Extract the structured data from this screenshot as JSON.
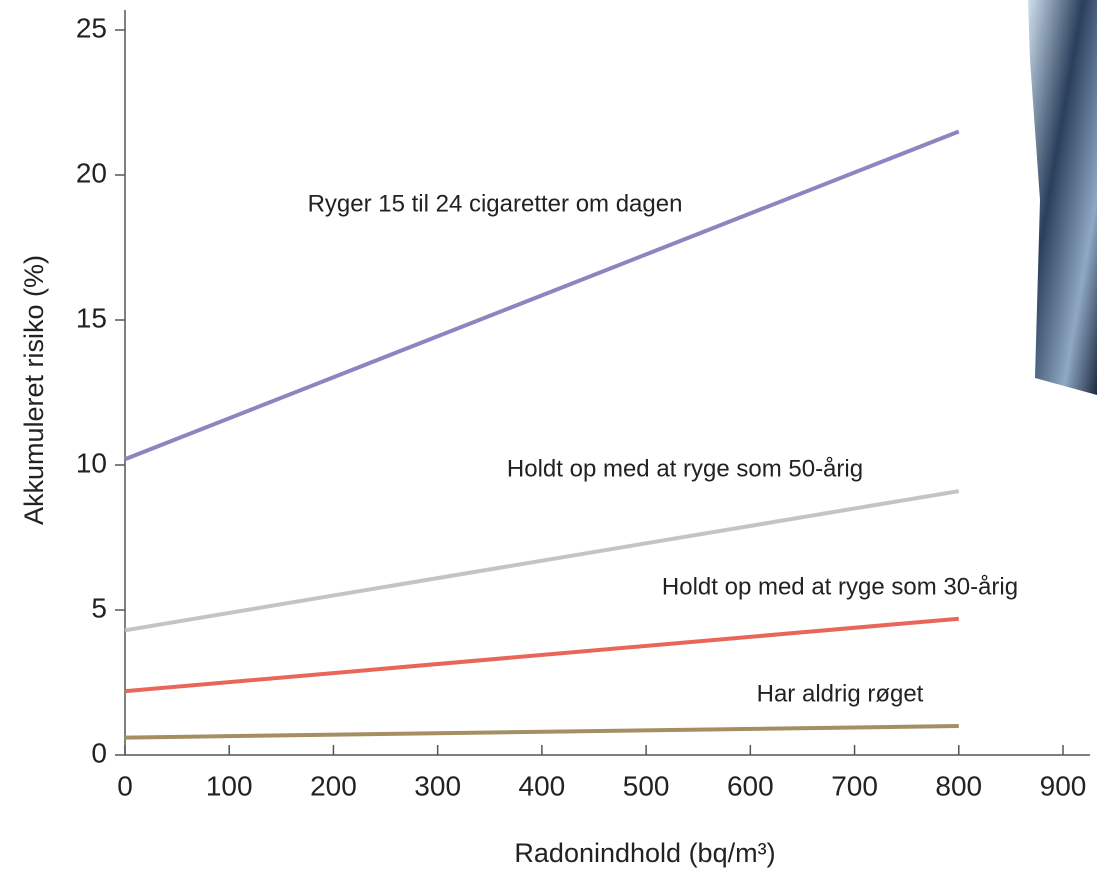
{
  "chart_data": {
    "type": "line",
    "x_label": "Radonindhold (bq/m³)",
    "y_label": "Akkumuleret risiko (%)",
    "x": [
      0,
      800
    ],
    "series": [
      {
        "name": "Ryger 15 til 24 cigaretter om dagen",
        "color": "#8c86c0",
        "values": [
          10.2,
          21.5
        ]
      },
      {
        "name": "Holdt op med at ryge som 50-årig",
        "color": "#c4c4c4",
        "values": [
          4.3,
          9.1
        ]
      },
      {
        "name": "Holdt op med at ryge som 30-årig",
        "color": "#e8675a",
        "values": [
          2.2,
          4.7
        ]
      },
      {
        "name": "Har aldrig røget",
        "color": "#a48e62",
        "values": [
          0.6,
          1.0
        ]
      }
    ],
    "xlim": [
      0,
      900
    ],
    "xticks": [
      0,
      100,
      200,
      300,
      400,
      500,
      600,
      700,
      800,
      900
    ],
    "ylim": [
      0,
      25
    ],
    "yticks": [
      0,
      5,
      10,
      15,
      20,
      25
    ]
  }
}
